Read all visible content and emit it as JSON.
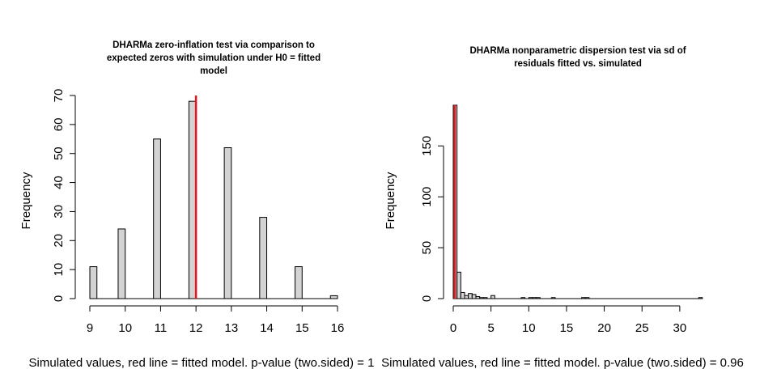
{
  "chart_data": [
    {
      "type": "bar",
      "title": [
        "DHARMa zero-inflation test via comparison to",
        "expected zeros with simulation under H0 = fitted",
        "model"
      ],
      "xlabel": "Simulated values, red line = fitted model. p-value (two.sided) = 1",
      "ylabel": "Frequency",
      "xlim": [
        9,
        16
      ],
      "ylim": [
        0,
        70
      ],
      "xticks": [
        9,
        10,
        11,
        12,
        13,
        14,
        15,
        16
      ],
      "yticks": [
        0,
        10,
        20,
        30,
        40,
        50,
        60,
        70
      ],
      "bins": [
        {
          "x0": 9.0,
          "x1": 9.2,
          "count": 11
        },
        {
          "x0": 9.8,
          "x1": 10.0,
          "count": 24
        },
        {
          "x0": 10.8,
          "x1": 11.0,
          "count": 55
        },
        {
          "x0": 11.8,
          "x1": 12.0,
          "count": 68
        },
        {
          "x0": 12.8,
          "x1": 13.0,
          "count": 52
        },
        {
          "x0": 13.8,
          "x1": 14.0,
          "count": 28
        },
        {
          "x0": 14.8,
          "x1": 15.0,
          "count": 11
        },
        {
          "x0": 15.8,
          "x1": 16.0,
          "count": 1
        }
      ],
      "observed": 12,
      "bar_fill": "#d3d3d3",
      "line_color": "#e8141b"
    },
    {
      "type": "bar",
      "title": [
        "DHARMa nonparametric dispersion test via sd of",
        "residuals fitted vs. simulated"
      ],
      "xlabel": "Simulated values, red line = fitted model. p-value (two.sided) = 0.96",
      "ylabel": "Frequency",
      "xlim": [
        0,
        32.8
      ],
      "ylim": [
        0,
        190
      ],
      "xticks": [
        0,
        5,
        10,
        15,
        20,
        25,
        30
      ],
      "yticks": [
        0,
        50,
        100,
        150
      ],
      "bins": [
        {
          "x0": 0.0,
          "x1": 0.5,
          "count": 190
        },
        {
          "x0": 0.5,
          "x1": 1.0,
          "count": 26
        },
        {
          "x0": 1.0,
          "x1": 1.5,
          "count": 6
        },
        {
          "x0": 1.5,
          "x1": 2.0,
          "count": 3
        },
        {
          "x0": 2.0,
          "x1": 2.5,
          "count": 5
        },
        {
          "x0": 2.5,
          "x1": 3.0,
          "count": 4
        },
        {
          "x0": 3.0,
          "x1": 3.5,
          "count": 2
        },
        {
          "x0": 3.5,
          "x1": 4.0,
          "count": 1
        },
        {
          "x0": 4.0,
          "x1": 4.5,
          "count": 1
        },
        {
          "x0": 5.0,
          "x1": 5.5,
          "count": 3
        },
        {
          "x0": 9.0,
          "x1": 9.5,
          "count": 1
        },
        {
          "x0": 10.0,
          "x1": 10.5,
          "count": 1
        },
        {
          "x0": 10.5,
          "x1": 11.0,
          "count": 1
        },
        {
          "x0": 11.0,
          "x1": 11.5,
          "count": 1
        },
        {
          "x0": 13.0,
          "x1": 13.5,
          "count": 1
        },
        {
          "x0": 17.0,
          "x1": 17.5,
          "count": 1
        },
        {
          "x0": 17.5,
          "x1": 18.0,
          "count": 1
        },
        {
          "x0": 32.5,
          "x1": 33.0,
          "count": 1
        }
      ],
      "observed": 0.2,
      "bar_fill": "#d3d3d3",
      "line_color": "#e8141b"
    }
  ]
}
